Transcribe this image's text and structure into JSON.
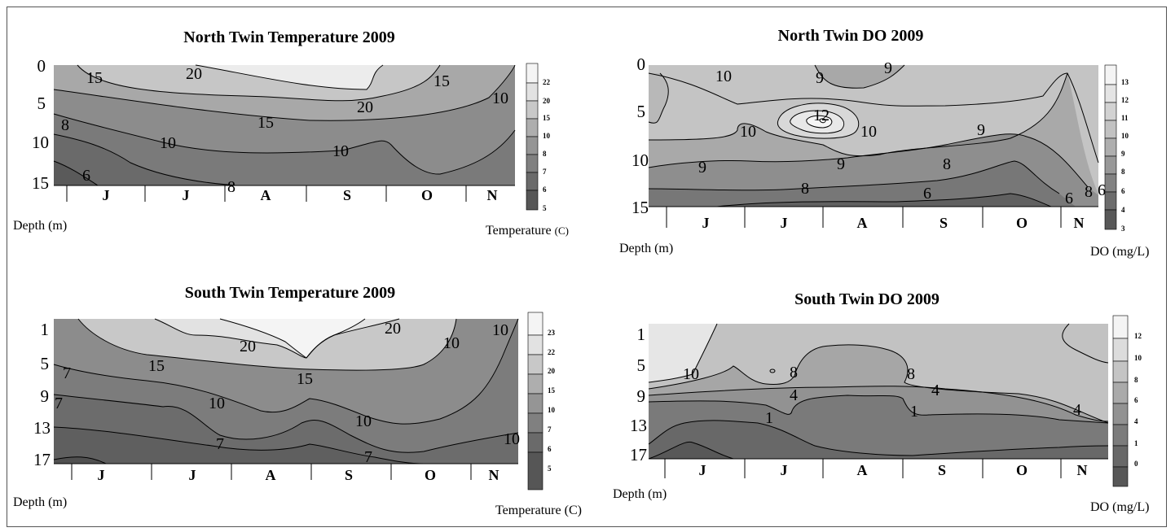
{
  "chart_data": [
    {
      "type": "contour",
      "title": "North Twin Temperature 2009",
      "xlabel": "",
      "ylabel": "Depth (m)",
      "colorbar_label": "Temperature",
      "colorbar_unit": "(C)",
      "x_ticks": [
        "J",
        "J",
        "A",
        "S",
        "O",
        "N"
      ],
      "y_ticks": [
        "0",
        "5",
        "10",
        "15"
      ],
      "ylim": [
        0,
        15
      ],
      "colorbar_ticks": [
        "22",
        "20",
        "15",
        "10",
        "8",
        "7",
        "6",
        "5"
      ],
      "contour_labels": [
        "20",
        "15",
        "15",
        "20",
        "15",
        "10",
        "8",
        "10",
        "10",
        "8",
        "6",
        "10"
      ]
    },
    {
      "type": "contour",
      "title": "North Twin DO 2009",
      "xlabel": "",
      "ylabel": "Depth (m)",
      "colorbar_label": "DO",
      "colorbar_unit": "(mg/L)",
      "x_ticks": [
        "J",
        "J",
        "A",
        "S",
        "O",
        "N"
      ],
      "y_ticks": [
        "0",
        "5",
        "10",
        "15"
      ],
      "ylim": [
        0,
        15
      ],
      "colorbar_ticks": [
        "13",
        "12",
        "11",
        "10",
        "9",
        "8",
        "6",
        "4",
        "3"
      ],
      "contour_labels": [
        "10",
        "9",
        "9",
        "12",
        "10",
        "10",
        "9",
        "9",
        "9",
        "8",
        "8",
        "6",
        "6",
        "8",
        "6"
      ]
    },
    {
      "type": "contour",
      "title": "South Twin Temperature 2009",
      "xlabel": "",
      "ylabel": "Depth (m)",
      "colorbar_label": "Temperature",
      "colorbar_unit": "(C)",
      "x_ticks": [
        "J",
        "J",
        "A",
        "S",
        "O",
        "N"
      ],
      "y_ticks": [
        "1",
        "5",
        "9",
        "13",
        "17"
      ],
      "ylim": [
        1,
        17
      ],
      "colorbar_ticks": [
        "23",
        "22",
        "20",
        "15",
        "10",
        "7",
        "6",
        "5"
      ],
      "contour_labels": [
        "20",
        "20",
        "15",
        "15",
        "10",
        "7",
        "10",
        "10",
        "10",
        "7",
        "7",
        "7",
        "10"
      ]
    },
    {
      "type": "contour",
      "title": "South Twin DO 2009",
      "xlabel": "",
      "ylabel": "Depth (m)",
      "colorbar_label": "DO",
      "colorbar_unit": "(mg/L)",
      "x_ticks": [
        "J",
        "J",
        "A",
        "S",
        "O",
        "N"
      ],
      "y_ticks": [
        "1",
        "5",
        "9",
        "13",
        "17"
      ],
      "ylim": [
        1,
        17
      ],
      "colorbar_ticks": [
        "12",
        "10",
        "8",
        "6",
        "4",
        "1",
        "0"
      ],
      "contour_labels": [
        "10",
        "8",
        "8",
        "4",
        "4",
        "1",
        "1",
        "4"
      ]
    }
  ]
}
